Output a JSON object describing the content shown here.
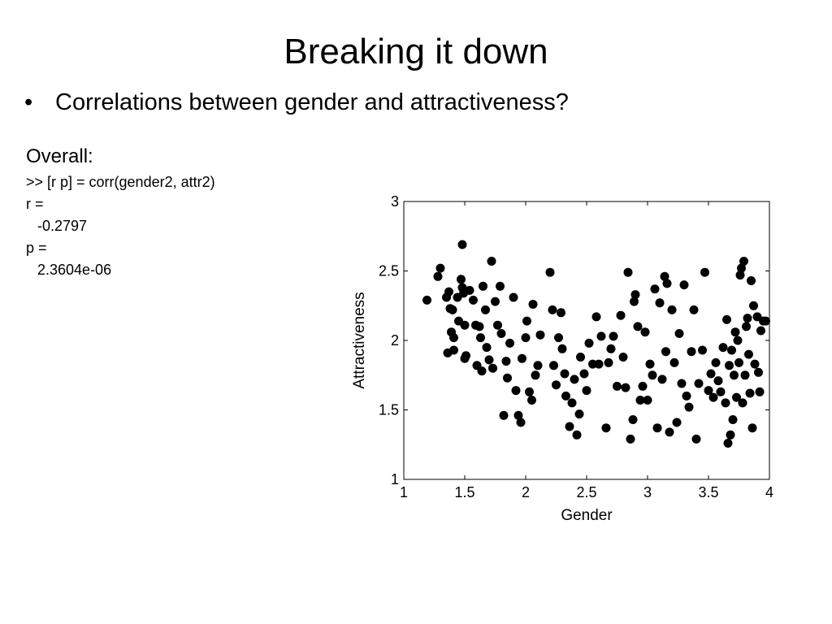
{
  "slide": {
    "title": "Breaking it down",
    "bullet": "Correlations between gender and attractiveness?",
    "bullet_symbol": "•",
    "overall_heading": "Overall:",
    "code": {
      "command": ">> [r p] = corr(gender2, attr2)",
      "r_label": "r =",
      "r_value": "-0.2797",
      "p_label": "p =",
      "p_value": "2.3604e-06"
    }
  },
  "chart_data": {
    "type": "scatter",
    "title": "",
    "xlabel": "Gender",
    "ylabel": "Attractiveness",
    "xlim": [
      1,
      4
    ],
    "ylim": [
      1,
      3
    ],
    "xticks": [
      1,
      1.5,
      2,
      2.5,
      3,
      3.5,
      4
    ],
    "xtick_labels": [
      "1",
      "1.5",
      "2",
      "2.5",
      "3",
      "3.5",
      "4"
    ],
    "yticks": [
      1,
      1.5,
      2,
      2.5,
      3
    ],
    "ytick_labels": [
      "1",
      "1.5",
      "2",
      "2.5",
      "3"
    ],
    "grid": false,
    "marker_color": "#000000",
    "points": [
      [
        1.19,
        2.29
      ],
      [
        1.28,
        2.46
      ],
      [
        1.3,
        2.52
      ],
      [
        1.35,
        2.31
      ],
      [
        1.37,
        2.35
      ],
      [
        1.38,
        2.23
      ],
      [
        1.36,
        1.91
      ],
      [
        1.39,
        2.06
      ],
      [
        1.4,
        2.22
      ],
      [
        1.41,
        2.02
      ],
      [
        1.41,
        1.93
      ],
      [
        1.44,
        2.31
      ],
      [
        1.45,
        2.14
      ],
      [
        1.47,
        2.44
      ],
      [
        1.48,
        2.38
      ],
      [
        1.48,
        2.69
      ],
      [
        1.49,
        2.34
      ],
      [
        1.5,
        2.11
      ],
      [
        1.5,
        1.87
      ],
      [
        1.51,
        1.89
      ],
      [
        1.54,
        2.36
      ],
      [
        1.57,
        2.29
      ],
      [
        1.59,
        2.11
      ],
      [
        1.6,
        1.82
      ],
      [
        1.62,
        2.1
      ],
      [
        1.63,
        2.02
      ],
      [
        1.64,
        1.78
      ],
      [
        1.65,
        2.39
      ],
      [
        1.67,
        2.22
      ],
      [
        1.68,
        1.95
      ],
      [
        1.7,
        1.86
      ],
      [
        1.72,
        2.57
      ],
      [
        1.73,
        1.8
      ],
      [
        1.75,
        2.28
      ],
      [
        1.77,
        2.11
      ],
      [
        1.79,
        2.39
      ],
      [
        1.8,
        2.05
      ],
      [
        1.82,
        1.46
      ],
      [
        1.84,
        1.85
      ],
      [
        1.85,
        1.73
      ],
      [
        1.87,
        1.98
      ],
      [
        1.9,
        2.31
      ],
      [
        1.92,
        1.64
      ],
      [
        1.94,
        1.46
      ],
      [
        1.96,
        1.41
      ],
      [
        1.97,
        1.87
      ],
      [
        2.0,
        2.02
      ],
      [
        2.01,
        2.14
      ],
      [
        2.03,
        1.63
      ],
      [
        2.05,
        1.57
      ],
      [
        2.06,
        2.26
      ],
      [
        2.08,
        1.75
      ],
      [
        2.1,
        1.82
      ],
      [
        2.12,
        2.04
      ],
      [
        2.2,
        2.49
      ],
      [
        2.22,
        2.22
      ],
      [
        2.23,
        1.82
      ],
      [
        2.25,
        1.68
      ],
      [
        2.27,
        2.02
      ],
      [
        2.29,
        2.2
      ],
      [
        2.3,
        1.94
      ],
      [
        2.32,
        1.76
      ],
      [
        2.33,
        1.6
      ],
      [
        2.36,
        1.38
      ],
      [
        2.38,
        1.55
      ],
      [
        2.4,
        1.72
      ],
      [
        2.42,
        1.32
      ],
      [
        2.44,
        1.47
      ],
      [
        2.45,
        1.88
      ],
      [
        2.48,
        1.76
      ],
      [
        2.5,
        1.64
      ],
      [
        2.52,
        1.98
      ],
      [
        2.55,
        1.83
      ],
      [
        2.58,
        2.17
      ],
      [
        2.6,
        1.83
      ],
      [
        2.62,
        2.03
      ],
      [
        2.66,
        1.37
      ],
      [
        2.68,
        1.84
      ],
      [
        2.7,
        1.94
      ],
      [
        2.72,
        2.03
      ],
      [
        2.75,
        1.67
      ],
      [
        2.78,
        2.18
      ],
      [
        2.8,
        1.88
      ],
      [
        2.82,
        1.66
      ],
      [
        2.84,
        2.49
      ],
      [
        2.86,
        1.29
      ],
      [
        2.88,
        1.43
      ],
      [
        2.89,
        2.28
      ],
      [
        2.9,
        2.33
      ],
      [
        2.92,
        2.1
      ],
      [
        2.94,
        1.57
      ],
      [
        2.96,
        1.67
      ],
      [
        2.98,
        2.06
      ],
      [
        3.0,
        1.57
      ],
      [
        3.02,
        1.83
      ],
      [
        3.04,
        1.75
      ],
      [
        3.06,
        2.37
      ],
      [
        3.08,
        1.37
      ],
      [
        3.1,
        2.27
      ],
      [
        3.12,
        1.72
      ],
      [
        3.14,
        2.46
      ],
      [
        3.15,
        1.92
      ],
      [
        3.16,
        2.41
      ],
      [
        3.18,
        1.34
      ],
      [
        3.2,
        2.22
      ],
      [
        3.22,
        1.84
      ],
      [
        3.24,
        1.41
      ],
      [
        3.26,
        2.05
      ],
      [
        3.28,
        1.69
      ],
      [
        3.3,
        2.4
      ],
      [
        3.32,
        1.6
      ],
      [
        3.34,
        1.52
      ],
      [
        3.36,
        1.92
      ],
      [
        3.38,
        2.22
      ],
      [
        3.4,
        1.29
      ],
      [
        3.42,
        1.69
      ],
      [
        3.45,
        1.93
      ],
      [
        3.47,
        2.49
      ],
      [
        3.5,
        1.64
      ],
      [
        3.52,
        1.76
      ],
      [
        3.54,
        1.59
      ],
      [
        3.56,
        1.84
      ],
      [
        3.58,
        1.71
      ],
      [
        3.6,
        1.63
      ],
      [
        3.62,
        1.95
      ],
      [
        3.64,
        1.55
      ],
      [
        3.65,
        2.15
      ],
      [
        3.66,
        1.26
      ],
      [
        3.67,
        1.82
      ],
      [
        3.68,
        1.32
      ],
      [
        3.69,
        1.93
      ],
      [
        3.7,
        1.43
      ],
      [
        3.71,
        1.75
      ],
      [
        3.72,
        2.06
      ],
      [
        3.73,
        1.59
      ],
      [
        3.74,
        2.0
      ],
      [
        3.75,
        1.84
      ],
      [
        3.76,
        2.47
      ],
      [
        3.77,
        2.52
      ],
      [
        3.78,
        1.55
      ],
      [
        3.79,
        2.57
      ],
      [
        3.8,
        1.75
      ],
      [
        3.81,
        2.1
      ],
      [
        3.82,
        2.16
      ],
      [
        3.83,
        1.9
      ],
      [
        3.84,
        1.62
      ],
      [
        3.85,
        2.43
      ],
      [
        3.86,
        1.37
      ],
      [
        3.87,
        2.25
      ],
      [
        3.88,
        1.83
      ],
      [
        3.9,
        2.17
      ],
      [
        3.91,
        1.77
      ],
      [
        3.92,
        1.63
      ],
      [
        3.93,
        2.07
      ],
      [
        3.95,
        2.14
      ],
      [
        3.97,
        2.14
      ]
    ]
  }
}
